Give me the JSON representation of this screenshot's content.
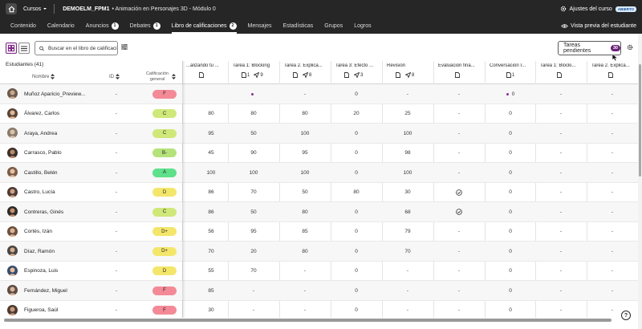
{
  "topbar": {
    "courses_label": "Cursos",
    "course_code": "DEMOELM_FPM1",
    "course_name": "• Animación en Personajes 3D - Módulo 0",
    "settings_label": "Ajustes del curso",
    "status_badge": "ABIERTO"
  },
  "nav": {
    "items": [
      {
        "label": "Contenido",
        "badge": ""
      },
      {
        "label": "Calendario",
        "badge": ""
      },
      {
        "label": "Anuncios",
        "badge": "1"
      },
      {
        "label": "Debates",
        "badge": "1"
      },
      {
        "label": "Libro de calificaciones",
        "badge": "2"
      },
      {
        "label": "Mensajes",
        "badge": ""
      },
      {
        "label": "Estadísticas",
        "badge": ""
      },
      {
        "label": "Grupos",
        "badge": ""
      },
      {
        "label": "Logros",
        "badge": ""
      }
    ],
    "active_index": 4,
    "preview_label": "Vista previa del estudiante"
  },
  "toolbar": {
    "search_placeholder": "Buscar en el libro de calificaciones",
    "pending_label": "Tareas pendientes",
    "pending_count": "30"
  },
  "grid": {
    "students_title": "Estudiantes (41)",
    "col_name": "Nombre",
    "col_id": "ID",
    "col_grade": "Calificación general",
    "columns": [
      {
        "name": "...alizando tu ...",
        "sub": [
          {
            "icon": "doc",
            "value": ""
          }
        ]
      },
      {
        "name": "Tarea 1: Blocking",
        "sub": [
          {
            "icon": "doc",
            "value": "1"
          },
          {
            "icon": "send",
            "value": "9"
          }
        ]
      },
      {
        "name": "Tarea 2. Explica...",
        "sub": [
          {
            "icon": "doc",
            "value": ""
          },
          {
            "icon": "send",
            "value": "8"
          }
        ]
      },
      {
        "name": "Tarea 3: Efecto ...",
        "sub": [
          {
            "icon": "doc",
            "value": ""
          },
          {
            "icon": "send",
            "value": "3"
          }
        ]
      },
      {
        "name": "Revisión",
        "sub": [
          {
            "icon": "doc",
            "value": ""
          },
          {
            "icon": "send",
            "value": "8"
          }
        ]
      },
      {
        "name": "Evaluación fina...",
        "sub": [
          {
            "icon": "doc",
            "value": ""
          }
        ]
      },
      {
        "name": "Conversación I...",
        "sub": [
          {
            "icon": "doc",
            "value": "1"
          }
        ]
      },
      {
        "name": "Tarea 1: Blocki...",
        "sub": [
          {
            "icon": "doc",
            "value": ""
          }
        ]
      },
      {
        "name": "Tarea 2. Explica...",
        "sub": [
          {
            "icon": "doc",
            "value": ""
          }
        ]
      }
    ],
    "rows": [
      {
        "name": "Muñoz Aparicio_Preview...",
        "id": "-",
        "grade": "F",
        "color": "#f48a97",
        "values": [
          "",
          "•",
          "-",
          "0",
          "-",
          "-",
          "•0",
          "-",
          "-"
        ]
      },
      {
        "name": "Álvarez, Carlos",
        "id": "-",
        "grade": "C",
        "color": "#cfe879",
        "values": [
          "80",
          "80",
          "80",
          "20",
          "25",
          "-",
          "0",
          "-",
          "-"
        ]
      },
      {
        "name": "Araya, Andrea",
        "id": "-",
        "grade": "C",
        "color": "#cfe879",
        "values": [
          "95",
          "50",
          "100",
          "0",
          "100",
          "-",
          "0",
          "-",
          "-"
        ]
      },
      {
        "name": "Carrasco, Pablo",
        "id": "-",
        "grade": "B-",
        "color": "#b5e27a",
        "values": [
          "45",
          "90",
          "95",
          "0",
          "98",
          "-",
          "0",
          "-",
          "-"
        ]
      },
      {
        "name": "Castillo, Belén",
        "id": "-",
        "grade": "A",
        "color": "#5fe08a",
        "values": [
          "100",
          "100",
          "100",
          "0",
          "100",
          "-",
          "0",
          "-",
          "-"
        ]
      },
      {
        "name": "Castro, Lucía",
        "id": "-",
        "grade": "D",
        "color": "#f4e66a",
        "values": [
          "86",
          "70",
          "50",
          "80",
          "30",
          "✓",
          "0",
          "-",
          "-"
        ]
      },
      {
        "name": "Contreras, Ginés",
        "id": "-",
        "grade": "C",
        "color": "#cfe879",
        "values": [
          "86",
          "50",
          "80",
          "0",
          "68",
          "✓",
          "0",
          "-",
          "-"
        ]
      },
      {
        "name": "Cortés, Izán",
        "id": "-",
        "grade": "D+",
        "color": "#f4e66a",
        "values": [
          "56",
          "95",
          "85",
          "0",
          "79",
          "-",
          "0",
          "-",
          "-"
        ]
      },
      {
        "name": "Díaz, Ramón",
        "id": "-",
        "grade": "D+",
        "color": "#f4e66a",
        "values": [
          "70",
          "20",
          "80",
          "0",
          "70",
          "-",
          "0",
          "-",
          "-"
        ]
      },
      {
        "name": "Espinoza, Luis",
        "id": "-",
        "grade": "D",
        "color": "#f4e66a",
        "values": [
          "55",
          "70",
          "-",
          "0",
          "-",
          "-",
          "0",
          "-",
          "-"
        ]
      },
      {
        "name": "Fernández, Miguel",
        "id": "-",
        "grade": "F",
        "color": "#f48a97",
        "values": [
          "85",
          "-",
          "-",
          "0",
          "-",
          "-",
          "0",
          "-",
          "-"
        ]
      },
      {
        "name": "Figueroa, Saúl",
        "id": "-",
        "grade": "F",
        "color": "#f48a97",
        "values": [
          "30",
          "-",
          "-",
          "0",
          "-",
          "-",
          "0",
          "-",
          "-"
        ]
      }
    ]
  }
}
